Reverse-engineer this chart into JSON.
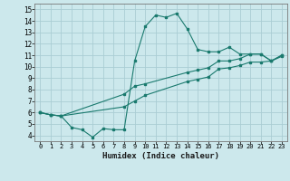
{
  "xlabel": "Humidex (Indice chaleur)",
  "background_color": "#cce8ec",
  "grid_color": "#aacdd4",
  "line_color": "#1a7a6e",
  "xlim": [
    -0.5,
    23.5
  ],
  "ylim": [
    3.5,
    15.5
  ],
  "xticks": [
    0,
    1,
    2,
    3,
    4,
    5,
    6,
    7,
    8,
    9,
    10,
    11,
    12,
    13,
    14,
    15,
    16,
    17,
    18,
    19,
    20,
    21,
    22,
    23
  ],
  "yticks": [
    4,
    5,
    6,
    7,
    8,
    9,
    10,
    11,
    12,
    13,
    14,
    15
  ],
  "line1_x": [
    0,
    1,
    2,
    3,
    4,
    5,
    6,
    7,
    8,
    9,
    10,
    11,
    12,
    13,
    14,
    15,
    16,
    17,
    18,
    19,
    20,
    21,
    22,
    23
  ],
  "line1_y": [
    6.0,
    5.8,
    5.7,
    4.7,
    4.5,
    3.85,
    4.6,
    4.5,
    4.5,
    10.5,
    13.5,
    14.5,
    14.3,
    14.65,
    13.3,
    11.5,
    11.3,
    11.3,
    11.7,
    11.1,
    11.1,
    11.1,
    10.5,
    11.0
  ],
  "line2_x": [
    0,
    1,
    2,
    8,
    9,
    10,
    14,
    15,
    16,
    17,
    18,
    19,
    20,
    21,
    22,
    23
  ],
  "line2_y": [
    6.0,
    5.8,
    5.7,
    7.6,
    8.3,
    8.5,
    9.5,
    9.7,
    9.9,
    10.5,
    10.5,
    10.7,
    11.1,
    11.1,
    10.5,
    11.0
  ],
  "line3_x": [
    0,
    1,
    2,
    8,
    9,
    10,
    14,
    15,
    16,
    17,
    18,
    19,
    20,
    21,
    22,
    23
  ],
  "line3_y": [
    6.0,
    5.8,
    5.7,
    6.5,
    7.0,
    7.5,
    8.7,
    8.9,
    9.1,
    9.8,
    9.9,
    10.1,
    10.4,
    10.4,
    10.5,
    10.9
  ]
}
